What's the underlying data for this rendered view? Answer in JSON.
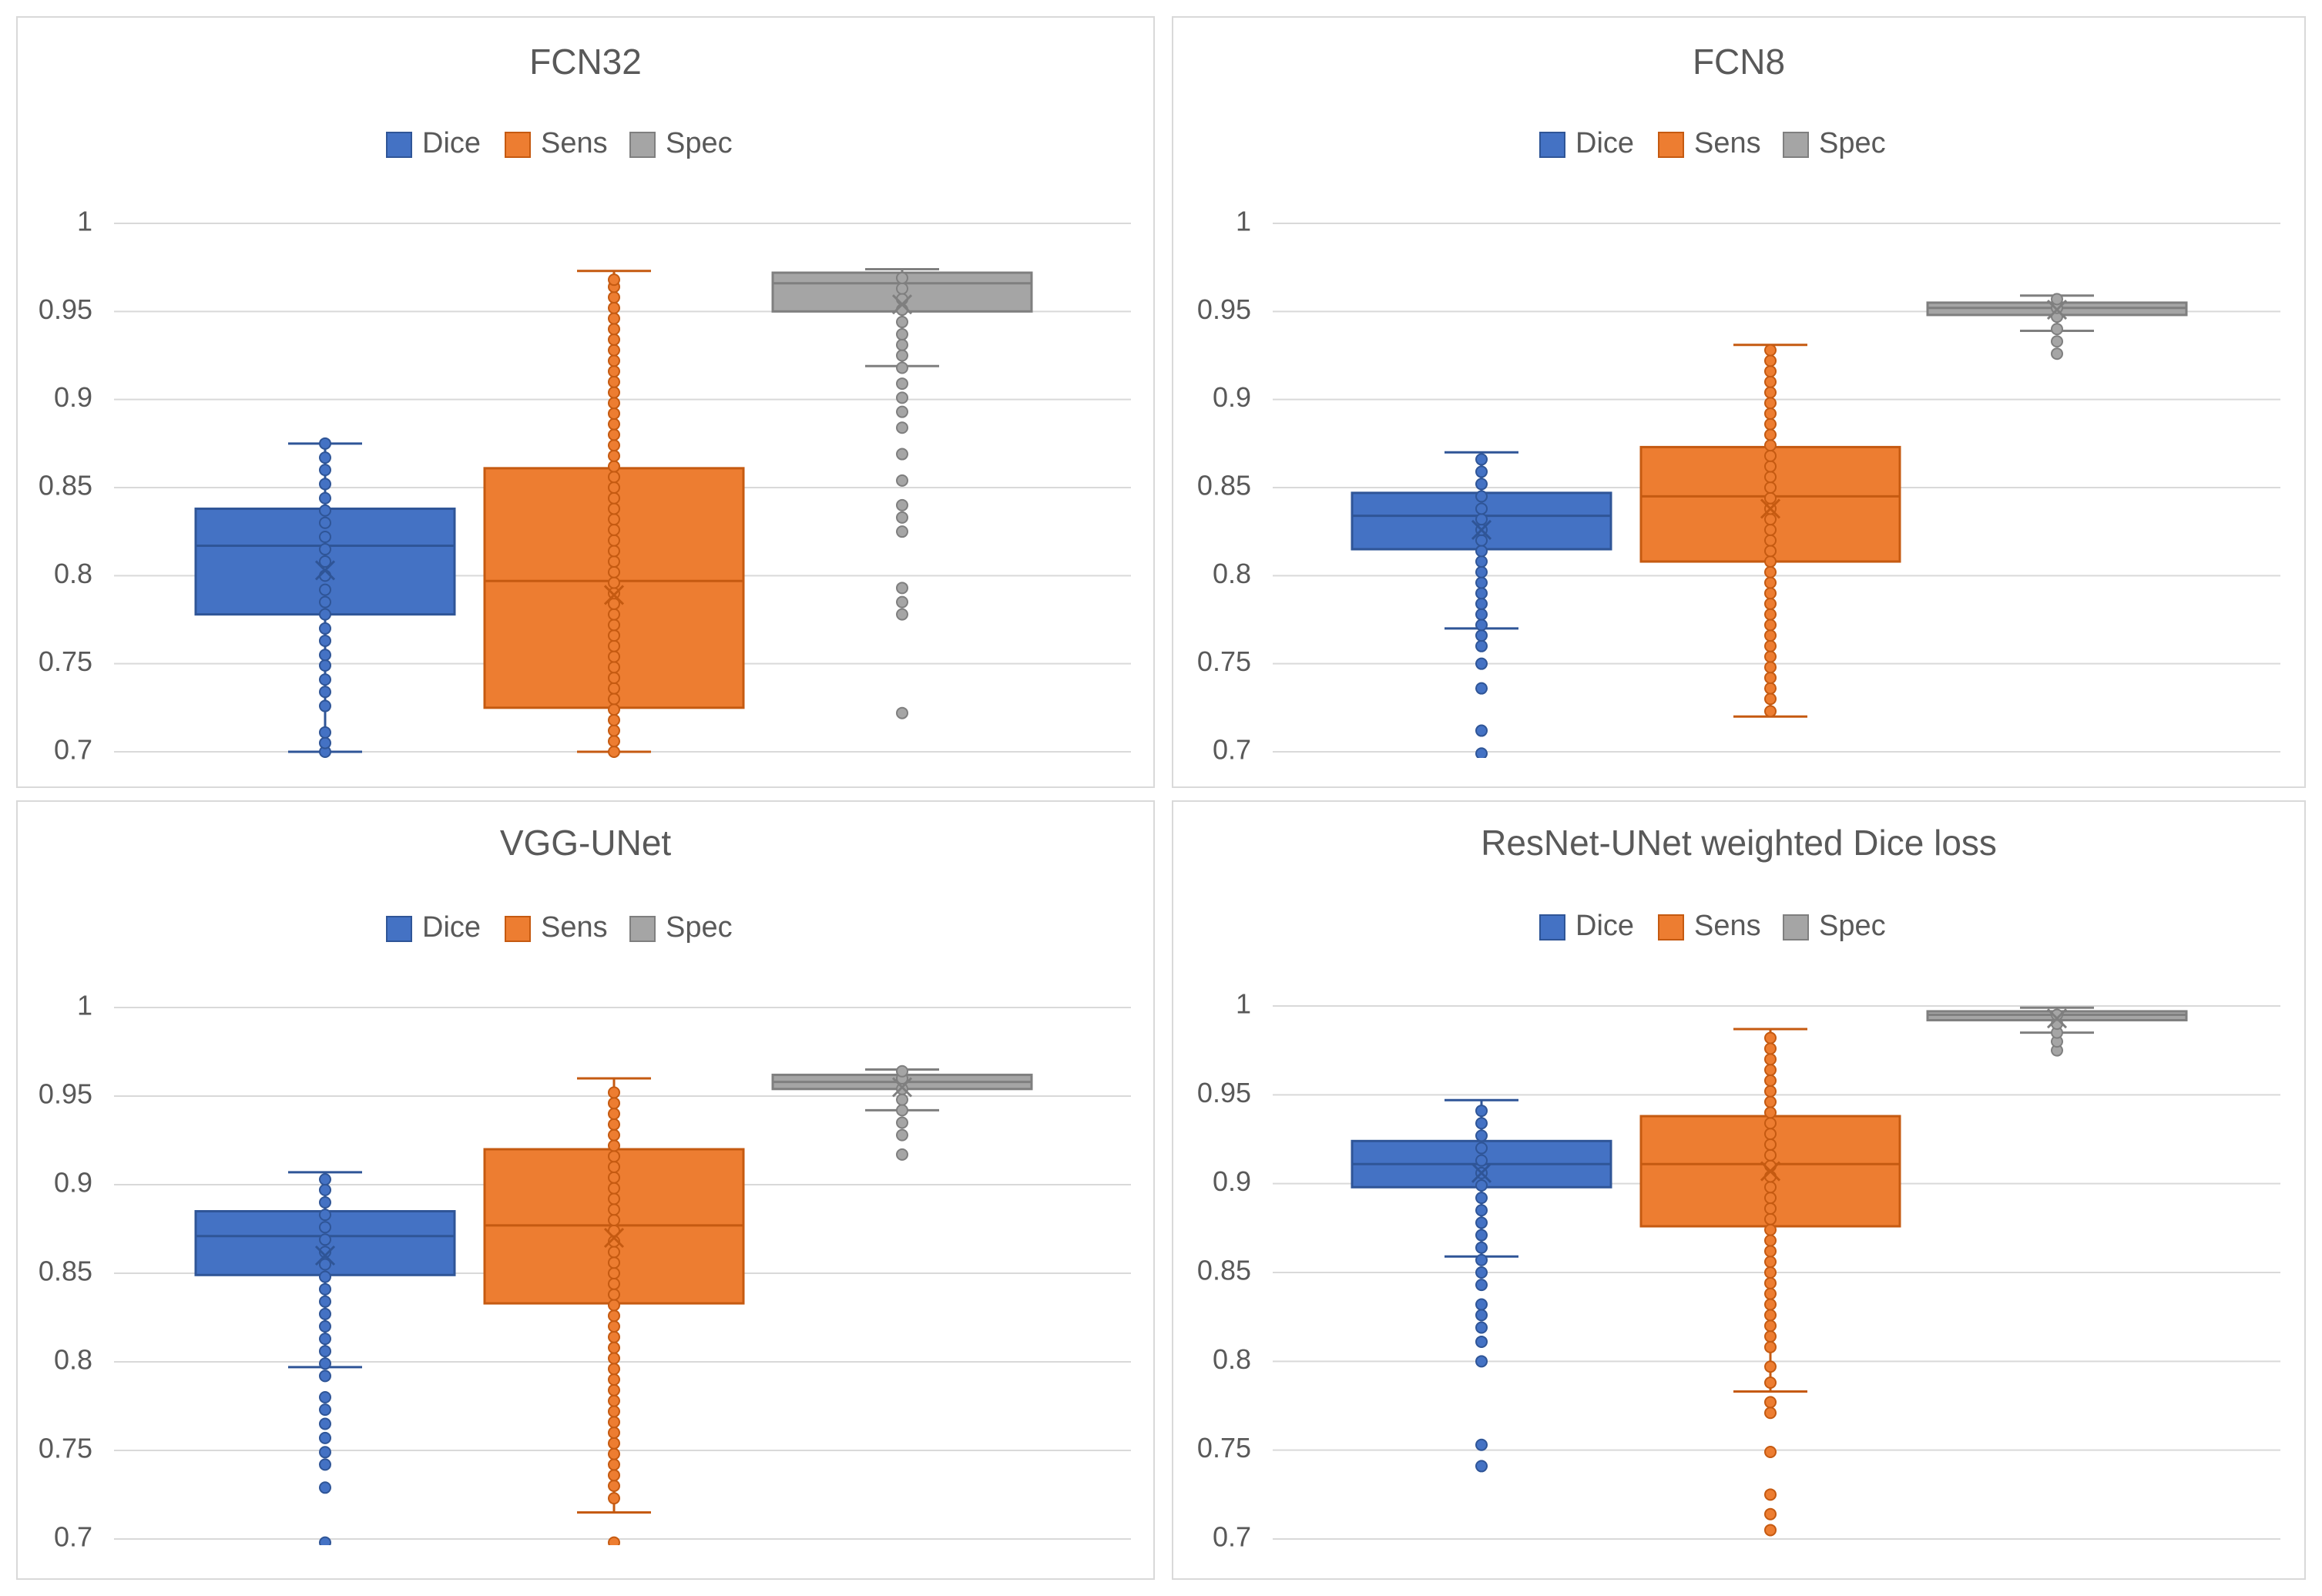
{
  "colors": {
    "dice_fill": "#4472C4",
    "dice_stroke": "#2F5597",
    "sens_fill": "#ED7D31",
    "sens_stroke": "#C55A11",
    "spec_fill": "#A5A5A5",
    "spec_stroke": "#7F7F7F",
    "grid": "#D9D9D9",
    "text": "#595959",
    "panel_border": "#D9D9D9"
  },
  "chart_data": [
    {
      "type": "box",
      "title": "FCN32",
      "legend": [
        "Dice",
        "Sens",
        "Spec"
      ],
      "legend_position": "top",
      "y_ticks": [
        "0.7",
        "0.75",
        "0.8",
        "0.85",
        "0.9",
        "0.95",
        "1"
      ],
      "ylim": [
        0.7,
        1.0
      ],
      "grid": true,
      "series": [
        {
          "name": "Dice",
          "whisker_low": 0.7,
          "q1": 0.778,
          "median": 0.817,
          "q3": 0.838,
          "whisker_high": 0.875,
          "mean": 0.803,
          "points": [
            0.7,
            0.705,
            0.711,
            0.726,
            0.734,
            0.741,
            0.749,
            0.755,
            0.763,
            0.77,
            0.778,
            0.785,
            0.792,
            0.8,
            0.808,
            0.815,
            0.822,
            0.83,
            0.837,
            0.844,
            0.852,
            0.86,
            0.867,
            0.875
          ]
        },
        {
          "name": "Sens",
          "whisker_low": 0.7,
          "q1": 0.725,
          "median": 0.797,
          "q3": 0.861,
          "whisker_high": 0.973,
          "mean": 0.789,
          "points": [
            0.7,
            0.706,
            0.712,
            0.718,
            0.724,
            0.73,
            0.736,
            0.742,
            0.748,
            0.754,
            0.76,
            0.766,
            0.772,
            0.778,
            0.784,
            0.79,
            0.796,
            0.802,
            0.808,
            0.814,
            0.82,
            0.826,
            0.832,
            0.838,
            0.844,
            0.85,
            0.856,
            0.862,
            0.868,
            0.874,
            0.88,
            0.886,
            0.892,
            0.898,
            0.904,
            0.91,
            0.916,
            0.922,
            0.928,
            0.934,
            0.94,
            0.946,
            0.952,
            0.958,
            0.964,
            0.968
          ]
        },
        {
          "name": "Spec",
          "whisker_low": 0.919,
          "q1": 0.95,
          "median": 0.966,
          "q3": 0.972,
          "whisker_high": 0.974,
          "mean": 0.954,
          "points": [
            0.722,
            0.778,
            0.785,
            0.793,
            0.825,
            0.833,
            0.84,
            0.854,
            0.869,
            0.884,
            0.893,
            0.901,
            0.909,
            0.918,
            0.925,
            0.931,
            0.937,
            0.944,
            0.951,
            0.957,
            0.963,
            0.969
          ]
        }
      ]
    },
    {
      "type": "box",
      "title": "FCN8",
      "legend": [
        "Dice",
        "Sens",
        "Spec"
      ],
      "legend_position": "top",
      "y_ticks": [
        "0.7",
        "0.75",
        "0.8",
        "0.85",
        "0.9",
        "0.95",
        "1"
      ],
      "ylim": [
        0.7,
        1.0
      ],
      "grid": true,
      "series": [
        {
          "name": "Dice",
          "whisker_low": 0.77,
          "q1": 0.815,
          "median": 0.834,
          "q3": 0.847,
          "whisker_high": 0.87,
          "mean": 0.826,
          "points": [
            0.699,
            0.712,
            0.736,
            0.75,
            0.76,
            0.766,
            0.772,
            0.778,
            0.784,
            0.79,
            0.796,
            0.802,
            0.808,
            0.814,
            0.82,
            0.826,
            0.832,
            0.838,
            0.845,
            0.852,
            0.859,
            0.866
          ]
        },
        {
          "name": "Sens",
          "whisker_low": 0.72,
          "q1": 0.808,
          "median": 0.845,
          "q3": 0.873,
          "whisker_high": 0.931,
          "mean": 0.838,
          "points": [
            0.723,
            0.73,
            0.736,
            0.742,
            0.748,
            0.754,
            0.76,
            0.766,
            0.772,
            0.778,
            0.784,
            0.79,
            0.796,
            0.802,
            0.808,
            0.814,
            0.82,
            0.826,
            0.832,
            0.838,
            0.844,
            0.85,
            0.856,
            0.862,
            0.868,
            0.874,
            0.88,
            0.886,
            0.892,
            0.898,
            0.904,
            0.91,
            0.916,
            0.922,
            0.928
          ]
        },
        {
          "name": "Spec",
          "whisker_low": 0.939,
          "q1": 0.948,
          "median": 0.952,
          "q3": 0.955,
          "whisker_high": 0.959,
          "mean": 0.951,
          "points": [
            0.926,
            0.933,
            0.94,
            0.947,
            0.952,
            0.957
          ]
        }
      ]
    },
    {
      "type": "box",
      "title": "VGG-UNet",
      "legend": [
        "Dice",
        "Sens",
        "Spec"
      ],
      "legend_position": "top",
      "y_ticks": [
        "0.7",
        "0.75",
        "0.8",
        "0.85",
        "0.9",
        "0.95",
        "1"
      ],
      "ylim": [
        0.7,
        1.0
      ],
      "grid": true,
      "series": [
        {
          "name": "Dice",
          "whisker_low": 0.797,
          "q1": 0.849,
          "median": 0.871,
          "q3": 0.885,
          "whisker_high": 0.907,
          "mean": 0.86,
          "points": [
            0.698,
            0.729,
            0.742,
            0.749,
            0.757,
            0.765,
            0.773,
            0.78,
            0.792,
            0.799,
            0.806,
            0.813,
            0.82,
            0.827,
            0.834,
            0.841,
            0.848,
            0.855,
            0.862,
            0.869,
            0.876,
            0.883,
            0.89,
            0.897,
            0.903
          ]
        },
        {
          "name": "Sens",
          "whisker_low": 0.715,
          "q1": 0.833,
          "median": 0.877,
          "q3": 0.92,
          "whisker_high": 0.96,
          "mean": 0.87,
          "points": [
            0.698,
            0.723,
            0.73,
            0.736,
            0.742,
            0.748,
            0.754,
            0.76,
            0.766,
            0.772,
            0.778,
            0.784,
            0.79,
            0.796,
            0.802,
            0.808,
            0.814,
            0.82,
            0.826,
            0.832,
            0.838,
            0.844,
            0.85,
            0.856,
            0.862,
            0.868,
            0.874,
            0.88,
            0.886,
            0.892,
            0.898,
            0.904,
            0.91,
            0.916,
            0.922,
            0.928,
            0.934,
            0.94,
            0.946,
            0.952
          ]
        },
        {
          "name": "Spec",
          "whisker_low": 0.942,
          "q1": 0.954,
          "median": 0.958,
          "q3": 0.962,
          "whisker_high": 0.965,
          "mean": 0.955,
          "points": [
            0.917,
            0.928,
            0.935,
            0.942,
            0.948,
            0.954,
            0.96,
            0.964
          ]
        }
      ]
    },
    {
      "type": "box",
      "title": "ResNet-UNet weighted Dice loss",
      "legend": [
        "Dice",
        "Sens",
        "Spec"
      ],
      "legend_position": "top",
      "y_ticks": [
        "0.7",
        "0.75",
        "0.8",
        "0.85",
        "0.9",
        "0.95",
        "1"
      ],
      "ylim": [
        0.7,
        1.0
      ],
      "grid": true,
      "series": [
        {
          "name": "Dice",
          "whisker_low": 0.859,
          "q1": 0.898,
          "median": 0.911,
          "q3": 0.924,
          "whisker_high": 0.947,
          "mean": 0.906,
          "points": [
            0.741,
            0.753,
            0.8,
            0.811,
            0.819,
            0.826,
            0.832,
            0.843,
            0.85,
            0.857,
            0.864,
            0.871,
            0.878,
            0.885,
            0.892,
            0.899,
            0.906,
            0.913,
            0.92,
            0.927,
            0.934,
            0.941
          ]
        },
        {
          "name": "Sens",
          "whisker_low": 0.783,
          "q1": 0.876,
          "median": 0.911,
          "q3": 0.938,
          "whisker_high": 0.987,
          "mean": 0.907,
          "points": [
            0.705,
            0.714,
            0.725,
            0.749,
            0.771,
            0.777,
            0.788,
            0.797,
            0.808,
            0.814,
            0.82,
            0.826,
            0.832,
            0.838,
            0.844,
            0.85,
            0.856,
            0.862,
            0.868,
            0.874,
            0.88,
            0.886,
            0.892,
            0.898,
            0.904,
            0.91,
            0.916,
            0.922,
            0.928,
            0.934,
            0.94,
            0.946,
            0.952,
            0.958,
            0.964,
            0.97,
            0.976,
            0.982
          ]
        },
        {
          "name": "Spec",
          "whisker_low": 0.985,
          "q1": 0.992,
          "median": 0.995,
          "q3": 0.997,
          "whisker_high": 0.999,
          "mean": 0.993,
          "points": [
            0.975,
            0.98,
            0.985,
            0.99,
            0.995
          ]
        }
      ]
    }
  ]
}
